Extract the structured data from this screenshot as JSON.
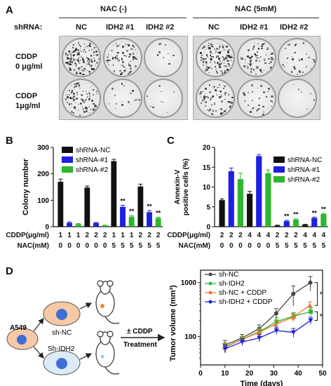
{
  "panel_labels": {
    "a": "A",
    "b": "B",
    "c": "C",
    "d": "D"
  },
  "panel_a": {
    "group_left": "NAC (-)",
    "group_right": "NAC (5mM)",
    "shrna_label": "shRNA:",
    "columns": [
      "NC",
      "IDH2 #1",
      "IDH2 #2",
      "NC",
      "IDH2 #1",
      "IDH2 #2"
    ],
    "row1_line1": "CDDP",
    "row1_line2": "0 μg/ml",
    "row2_line1": "CDDP",
    "row2_line2": "1μg/ml",
    "colony_density": [
      [
        1.0,
        0.55,
        0.06,
        0.85,
        0.5,
        0.2
      ],
      [
        0.6,
        0.1,
        0.06,
        0.45,
        0.22,
        0.04
      ]
    ]
  },
  "chart_data": [
    {
      "type": "bar",
      "ylabel": "Colony number",
      "ylim": [
        0,
        300
      ],
      "yticks": [
        "0",
        "100",
        "200",
        "300"
      ],
      "legend": [
        "shRNA-NC",
        "shRNA-#1",
        "shRNA-#2"
      ],
      "colors": [
        "#111111",
        "#1f1fe0",
        "#2fb52f"
      ],
      "values": [
        170,
        15,
        10,
        148,
        14,
        5,
        248,
        75,
        38,
        152,
        55,
        33
      ],
      "errors": [
        10,
        3,
        2,
        6,
        2,
        1,
        7,
        6,
        4,
        9,
        6,
        3
      ],
      "series_index": [
        0,
        1,
        2,
        0,
        1,
        2,
        0,
        1,
        2,
        0,
        1,
        2
      ],
      "stars": [
        "",
        "",
        "",
        "",
        "",
        "",
        "",
        "**",
        "**",
        "",
        "**",
        "**"
      ],
      "row1_label": "CDDP(μg/ml)",
      "row1": [
        "1",
        "1",
        "1",
        "2",
        "2",
        "2",
        "1",
        "1",
        "1",
        "2",
        "2",
        "2"
      ],
      "row2_label": "NAC(mM)",
      "row2": [
        "0",
        "0",
        "0",
        "0",
        "0",
        "0",
        "5",
        "5",
        "5",
        "5",
        "5",
        "5"
      ]
    },
    {
      "type": "bar",
      "ylabel_line1": "Annexin-V",
      "ylabel_line2": "positive cells (%)",
      "ylim": [
        0,
        20
      ],
      "yticks": [
        "0",
        "5",
        "10",
        "15",
        "20"
      ],
      "legend": [
        "shRNA-NC",
        "shRNA-#1",
        "shRNA-#2"
      ],
      "colors": [
        "#111111",
        "#1f1fe0",
        "#2fb52f"
      ],
      "values": [
        6.7,
        14,
        12,
        8.3,
        17.8,
        13.5,
        0.3,
        1.4,
        1.8,
        0.5,
        2.2,
        3.2
      ],
      "errors": [
        0.3,
        0.8,
        1.5,
        0.6,
        0.4,
        0.8,
        0.1,
        0.2,
        0.2,
        0.1,
        0.2,
        0.2
      ],
      "series_index": [
        0,
        1,
        2,
        0,
        1,
        2,
        0,
        1,
        2,
        0,
        1,
        2
      ],
      "stars": [
        "",
        "",
        "",
        "",
        "",
        "",
        "",
        "**",
        "**",
        "",
        "**",
        "**"
      ],
      "row1_label": "CDDP(μg/ml)",
      "row1": [
        "2",
        "2",
        "2",
        "4",
        "4",
        "4",
        "2",
        "2",
        "2",
        "4",
        "4",
        "4"
      ],
      "row2_label": "NAC(mM)",
      "row2": [
        "0",
        "0",
        "0",
        "0",
        "0",
        "0",
        "5",
        "5",
        "5",
        "5",
        "5",
        "5"
      ]
    },
    {
      "type": "line",
      "xlabel": "Time (days)",
      "ylabel": "Tumor volume (mm³)",
      "ylim": [
        30,
        1700
      ],
      "yscale": "log",
      "yticks": [
        {
          "v": 100,
          "t": "100"
        },
        {
          "v": 1000,
          "t": "1000"
        }
      ],
      "xlim": [
        0,
        50
      ],
      "xticks": [
        0,
        10,
        20,
        30,
        40,
        50
      ],
      "x": [
        10,
        17,
        24,
        31,
        38,
        45
      ],
      "series": [
        {
          "name": "sh-NC",
          "color": "#444444",
          "marker": "circle",
          "values": [
            70,
            95,
            140,
            270,
            620,
            1000
          ],
          "errors": [
            15,
            15,
            25,
            60,
            250,
            300
          ]
        },
        {
          "name": "sh-IDH2",
          "color": "#2fb52f",
          "marker": "square",
          "values": [
            65,
            90,
            125,
            190,
            240,
            290
          ],
          "errors": [
            12,
            12,
            20,
            35,
            40,
            50
          ]
        },
        {
          "name": "sh-NC + CDDP",
          "color": "#ee7733",
          "marker": "triangle",
          "values": [
            63,
            88,
            120,
            170,
            230,
            380
          ],
          "errors": [
            12,
            12,
            18,
            30,
            40,
            60
          ]
        },
        {
          "name": "sh-IDH2 + CDDP",
          "color": "#1f1fe0",
          "marker": "invtriangle",
          "values": [
            60,
            80,
            95,
            130,
            120,
            200
          ],
          "errors": [
            10,
            12,
            15,
            20,
            22,
            30
          ]
        }
      ],
      "annotations": [
        "*",
        "*"
      ]
    }
  ],
  "panel_d": {
    "cell_line": "A549",
    "top_label": "sh-NC",
    "bottom_label": "Sh-IDH2",
    "arrow_top": "± CDDP",
    "arrow_bottom": "Treatment"
  }
}
